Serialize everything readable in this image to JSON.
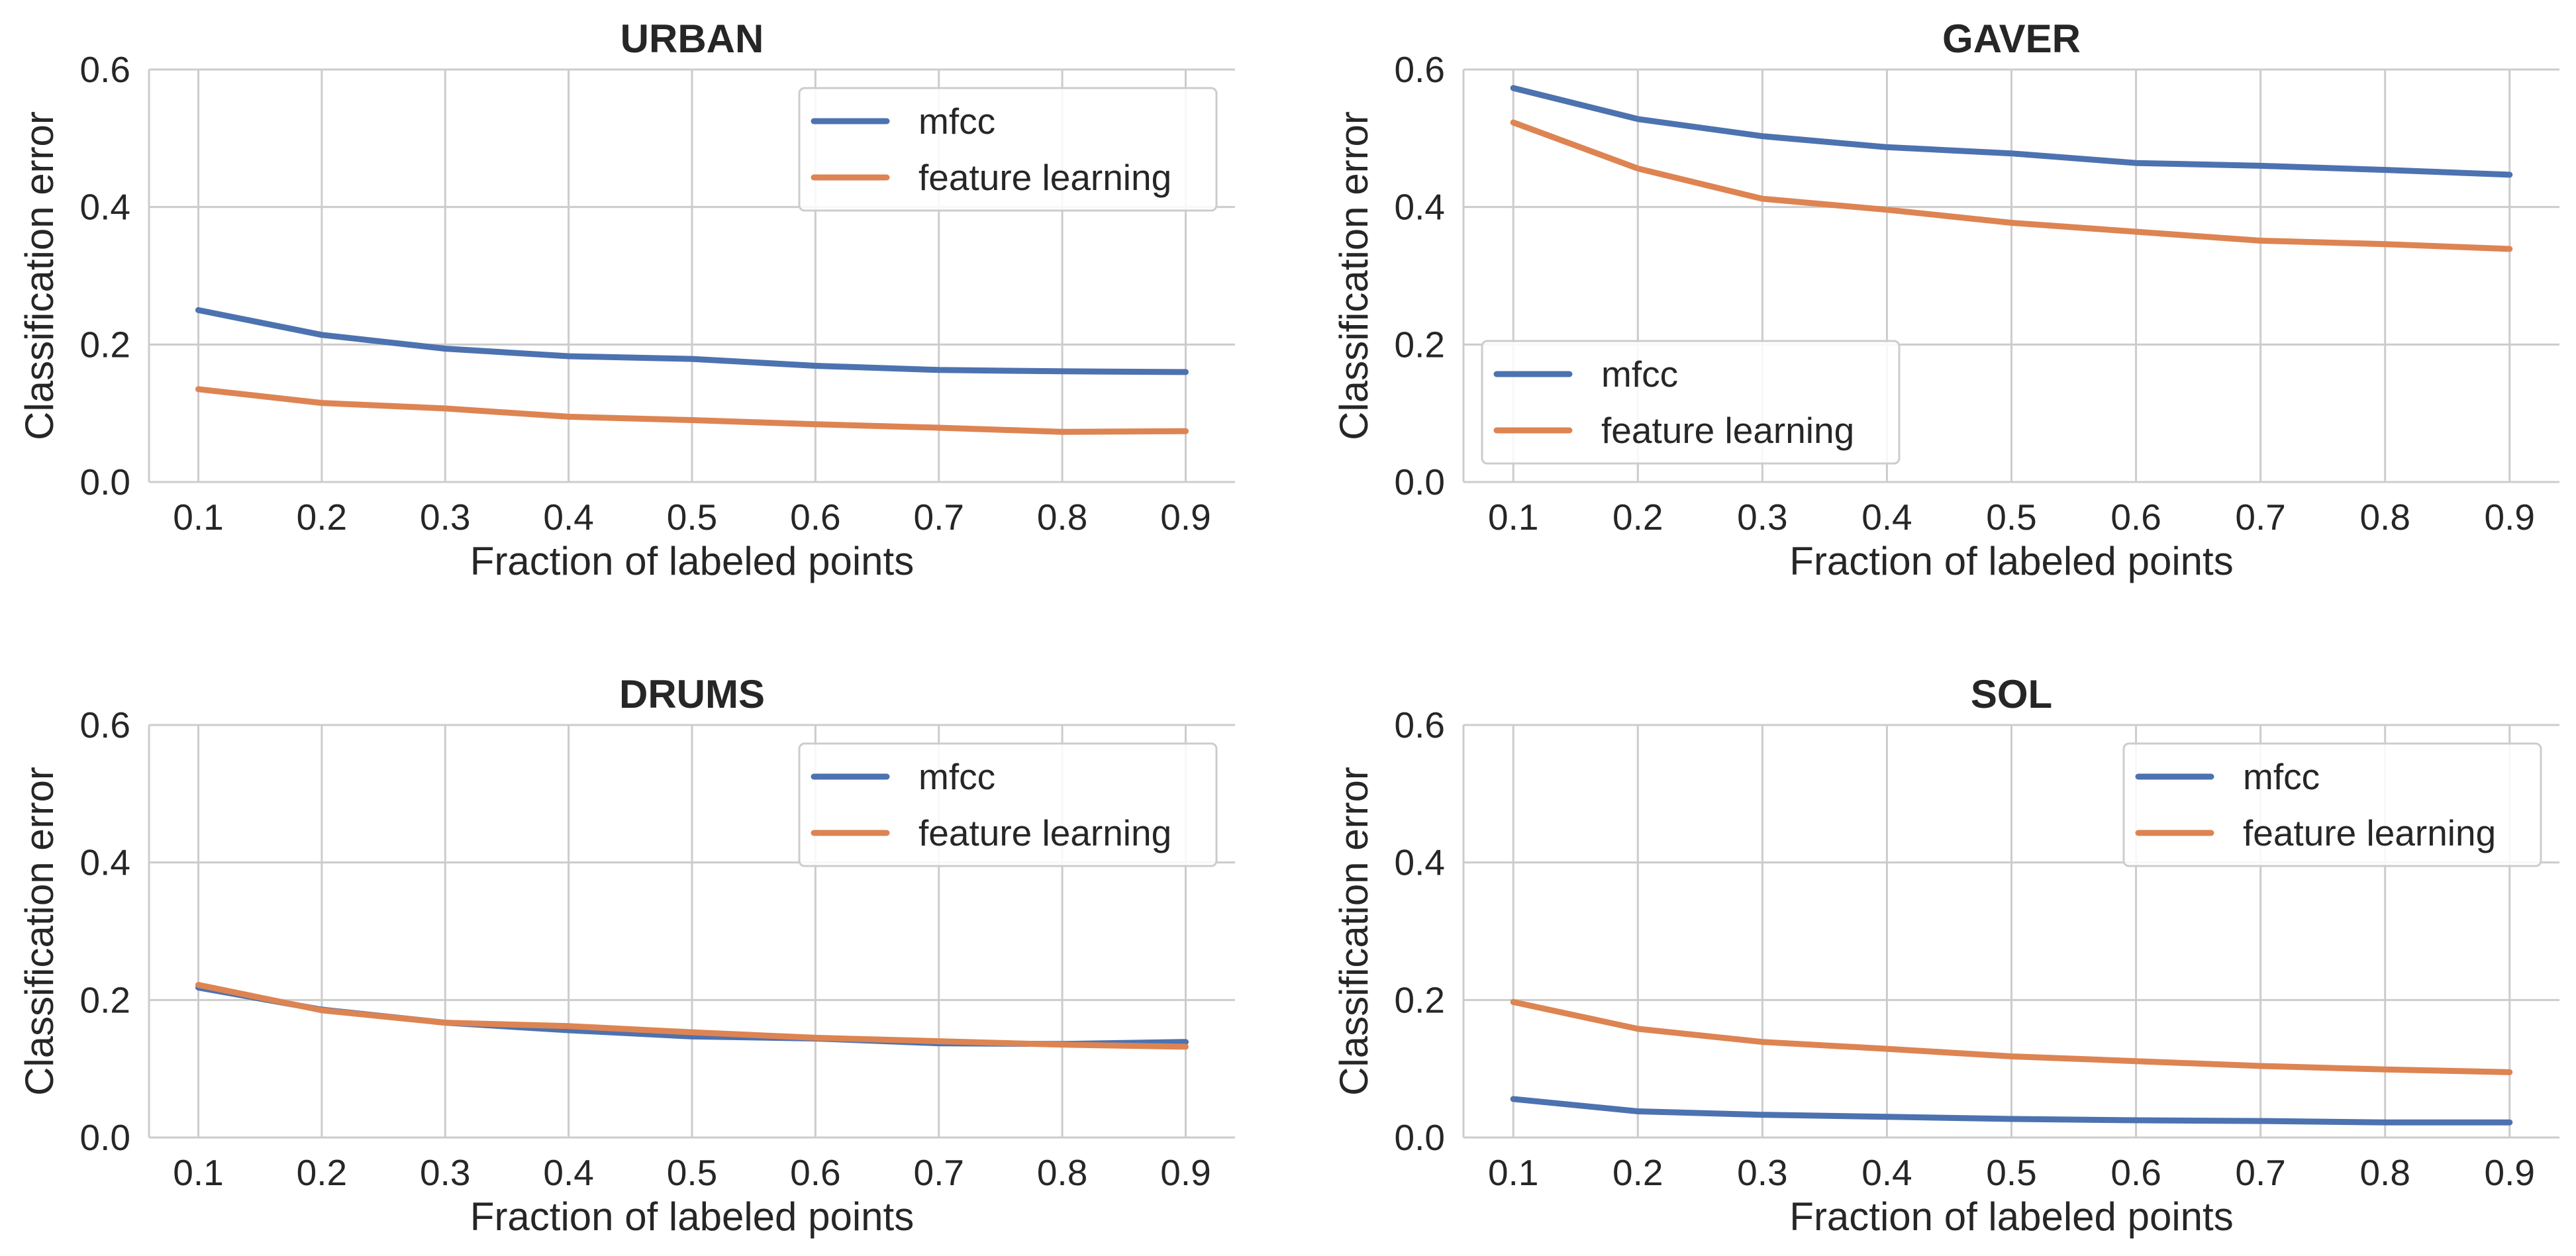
{
  "chart_data": [
    {
      "type": "line",
      "title": "URBAN",
      "xlabel": "Fraction of labeled points",
      "ylabel": "Classification error",
      "x": [
        0.1,
        0.2,
        0.3,
        0.4,
        0.5,
        0.6,
        0.7,
        0.8,
        0.9
      ],
      "x_tick_labels": [
        "0.1",
        "0.2",
        "0.3",
        "0.4",
        "0.5",
        "0.6",
        "0.7",
        "0.8",
        "0.9"
      ],
      "y_ticks": [
        0.0,
        0.2,
        0.4,
        0.6
      ],
      "y_tick_labels": [
        "0.0",
        "0.2",
        "0.4",
        "0.6"
      ],
      "xlim": [
        0.06,
        0.94
      ],
      "ylim": [
        0.0,
        0.6
      ],
      "grid": true,
      "legend_position": "upper-right",
      "series": [
        {
          "name": "mfcc",
          "color": "#4c72b0",
          "values": [
            0.25,
            0.214,
            0.194,
            0.183,
            0.179,
            0.169,
            0.163,
            0.161,
            0.16
          ]
        },
        {
          "name": "feature learning",
          "color": "#dd8452",
          "values": [
            0.135,
            0.115,
            0.107,
            0.095,
            0.09,
            0.084,
            0.079,
            0.073,
            0.074
          ]
        }
      ]
    },
    {
      "type": "line",
      "title": "GAVER",
      "xlabel": "Fraction of labeled points",
      "ylabel": "Classification error",
      "x": [
        0.1,
        0.2,
        0.3,
        0.4,
        0.5,
        0.6,
        0.7,
        0.8,
        0.9
      ],
      "x_tick_labels": [
        "0.1",
        "0.2",
        "0.3",
        "0.4",
        "0.5",
        "0.6",
        "0.7",
        "0.8",
        "0.9"
      ],
      "y_ticks": [
        0.0,
        0.2,
        0.4,
        0.6
      ],
      "y_tick_labels": [
        "0.0",
        "0.2",
        "0.4",
        "0.6"
      ],
      "xlim": [
        0.06,
        0.94
      ],
      "ylim": [
        0.0,
        0.6
      ],
      "grid": true,
      "legend_position": "lower-left",
      "series": [
        {
          "name": "mfcc",
          "color": "#4c72b0",
          "values": [
            0.573,
            0.528,
            0.503,
            0.487,
            0.478,
            0.464,
            0.46,
            0.454,
            0.447
          ]
        },
        {
          "name": "feature learning",
          "color": "#dd8452",
          "values": [
            0.523,
            0.456,
            0.412,
            0.396,
            0.377,
            0.364,
            0.351,
            0.346,
            0.339
          ]
        }
      ]
    },
    {
      "type": "line",
      "title": "DRUMS",
      "xlabel": "Fraction of labeled points",
      "ylabel": "Classification error",
      "x": [
        0.1,
        0.2,
        0.3,
        0.4,
        0.5,
        0.6,
        0.7,
        0.8,
        0.9
      ],
      "x_tick_labels": [
        "0.1",
        "0.2",
        "0.3",
        "0.4",
        "0.5",
        "0.6",
        "0.7",
        "0.8",
        "0.9"
      ],
      "y_ticks": [
        0.0,
        0.2,
        0.4,
        0.6
      ],
      "y_tick_labels": [
        "0.0",
        "0.2",
        "0.4",
        "0.6"
      ],
      "xlim": [
        0.06,
        0.94
      ],
      "ylim": [
        0.0,
        0.6
      ],
      "grid": true,
      "legend_position": "upper-right",
      "series": [
        {
          "name": "mfcc",
          "color": "#4c72b0",
          "values": [
            0.218,
            0.186,
            0.167,
            0.156,
            0.147,
            0.144,
            0.137,
            0.136,
            0.139
          ]
        },
        {
          "name": "feature learning",
          "color": "#dd8452",
          "values": [
            0.222,
            0.185,
            0.167,
            0.162,
            0.153,
            0.145,
            0.14,
            0.135,
            0.132
          ]
        }
      ]
    },
    {
      "type": "line",
      "title": "SOL",
      "xlabel": "Fraction of labeled points",
      "ylabel": "Classification error",
      "x": [
        0.1,
        0.2,
        0.3,
        0.4,
        0.5,
        0.6,
        0.7,
        0.8,
        0.9
      ],
      "x_tick_labels": [
        "0.1",
        "0.2",
        "0.3",
        "0.4",
        "0.5",
        "0.6",
        "0.7",
        "0.8",
        "0.9"
      ],
      "y_ticks": [
        0.0,
        0.2,
        0.4,
        0.6
      ],
      "y_tick_labels": [
        "0.0",
        "0.2",
        "0.4",
        "0.6"
      ],
      "xlim": [
        0.06,
        0.94
      ],
      "ylim": [
        0.0,
        0.6
      ],
      "grid": true,
      "legend_position": "upper-right",
      "series": [
        {
          "name": "mfcc",
          "color": "#4c72b0",
          "values": [
            0.056,
            0.038,
            0.033,
            0.03,
            0.027,
            0.025,
            0.024,
            0.022,
            0.022
          ]
        },
        {
          "name": "feature learning",
          "color": "#dd8452",
          "values": [
            0.197,
            0.158,
            0.139,
            0.129,
            0.118,
            0.111,
            0.104,
            0.099,
            0.095
          ]
        }
      ]
    }
  ]
}
